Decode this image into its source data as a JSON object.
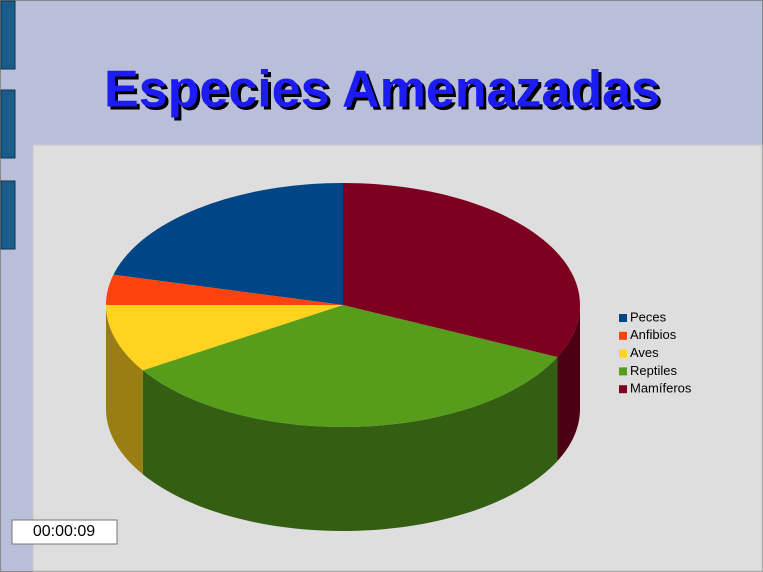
{
  "chart_data": {
    "type": "pie3d",
    "title": "Especies Amenazadas",
    "categories": [
      "Peces",
      "Anfibios",
      "Aves",
      "Reptiles",
      "Mamíferos"
    ],
    "values": [
      21,
      4,
      9,
      34,
      32
    ],
    "colors": [
      "#004586",
      "#ff420e",
      "#ffd320",
      "#579d1c",
      "#7e0021"
    ],
    "legend": "right"
  },
  "timer": "00:00:09"
}
